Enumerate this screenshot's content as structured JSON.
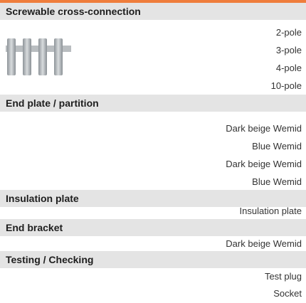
{
  "sections": [
    {
      "title": "Screwable cross-connection",
      "items": [
        "2-pole",
        "3-pole",
        "4-pole",
        "10-pole"
      ]
    },
    {
      "title": "End plate / partition",
      "items": [
        "Dark beige Wemid",
        "Blue Wemid",
        "Dark beige Wemid",
        "Blue Wemid"
      ]
    },
    {
      "title": "Insulation plate",
      "items": [
        "Insulation plate"
      ]
    },
    {
      "title": "End bracket",
      "items": [
        "Dark beige Wemid"
      ]
    },
    {
      "title": "Testing / Checking",
      "items": [
        "Test plug",
        "Socket"
      ]
    }
  ]
}
